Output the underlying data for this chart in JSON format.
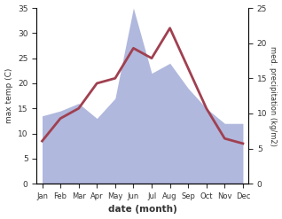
{
  "months": [
    "Jan",
    "Feb",
    "Mar",
    "Apr",
    "May",
    "Jun",
    "Jul",
    "Aug",
    "Sep",
    "Oct",
    "Nov",
    "Dec"
  ],
  "temperature": [
    8.5,
    13.0,
    15.0,
    20.0,
    21.0,
    27.0,
    25.0,
    31.0,
    23.0,
    15.0,
    9.0,
    8.0
  ],
  "precipitation_left_scale": [
    13.5,
    14.5,
    16.0,
    13.0,
    17.0,
    35.0,
    22.0,
    24.0,
    19.0,
    15.0,
    12.0,
    12.0
  ],
  "temp_color": "#a04050",
  "precip_color": "#b0b8dd",
  "xlabel": "date (month)",
  "ylabel_left": "max temp (C)",
  "ylabel_right": "med. precipitation (kg/m2)",
  "temp_ylim": [
    0,
    35
  ],
  "precip_ylim": [
    0,
    25
  ],
  "temp_yticks": [
    0,
    5,
    10,
    15,
    20,
    25,
    30,
    35
  ],
  "precip_yticks": [
    0,
    5,
    10,
    15,
    20,
    25
  ],
  "temp_linewidth": 2.0,
  "precip_scale_factor": 1.4
}
